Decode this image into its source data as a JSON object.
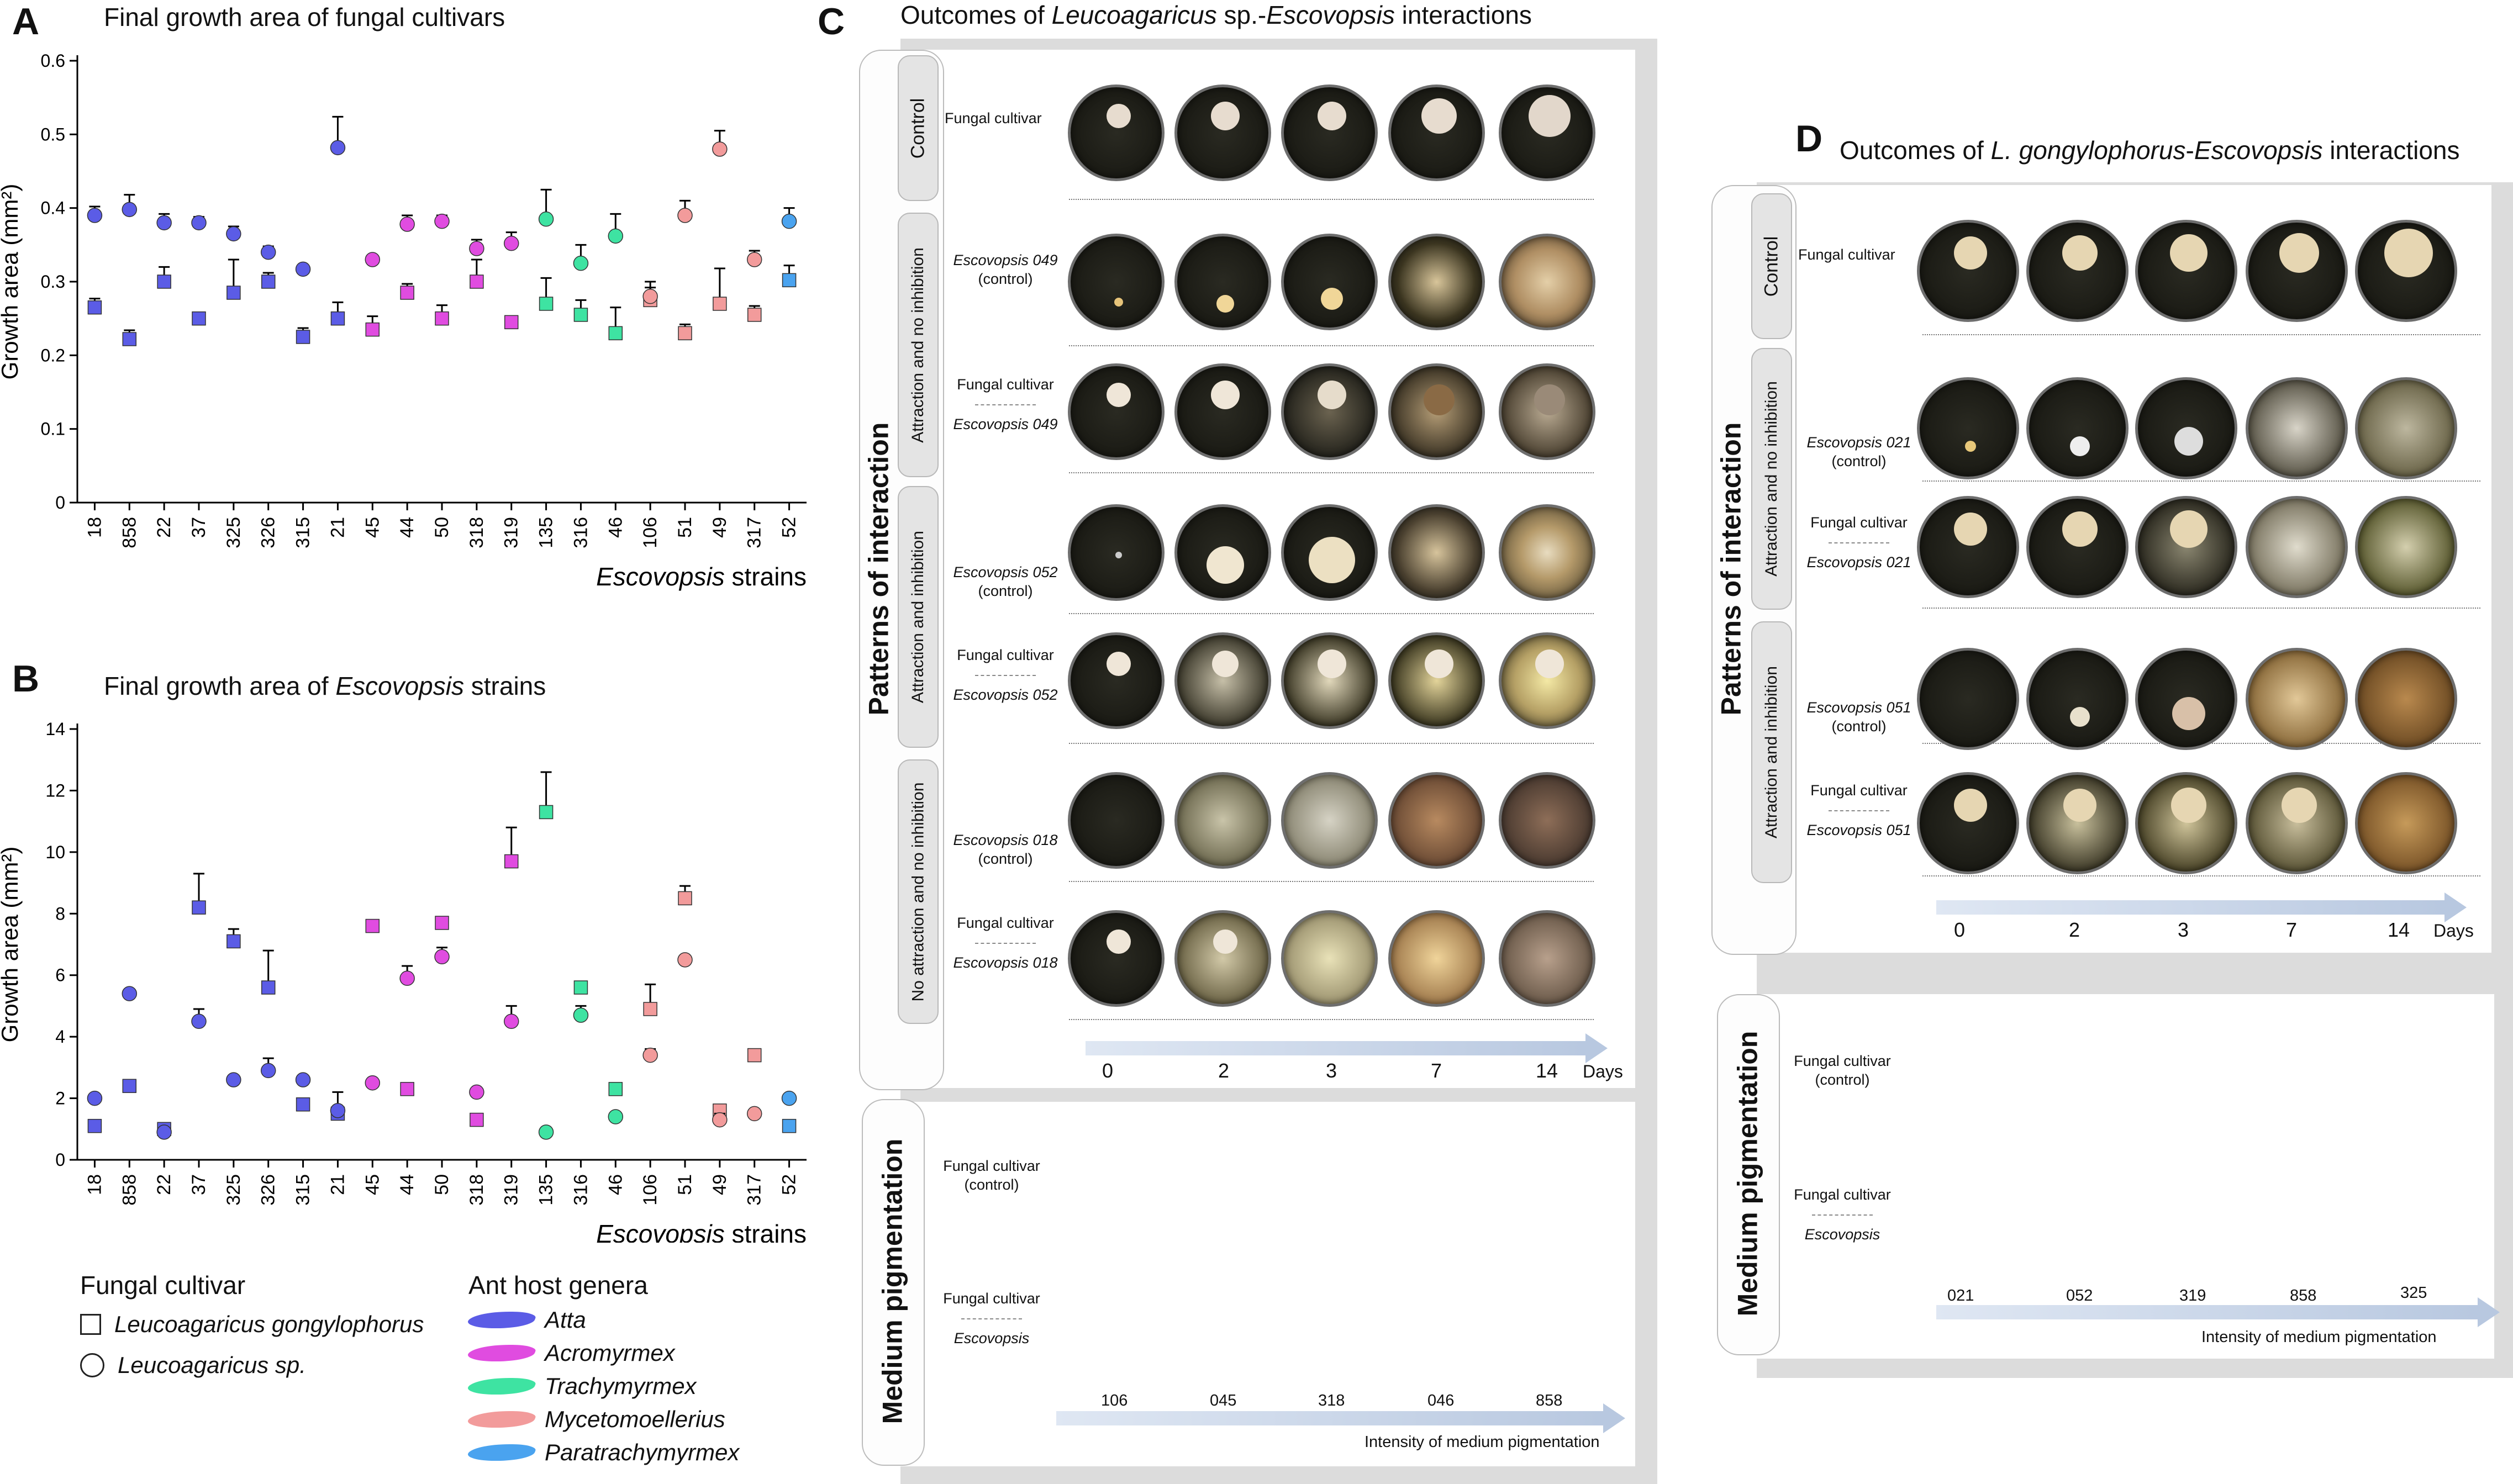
{
  "panelA": {
    "label": "A",
    "title": "Final growth area of fungal cultivars",
    "ylabel": "Growth area (mm²)",
    "xlabel_italic": "Escovopsis",
    "xlabel_rest": " strains"
  },
  "panelB": {
    "label": "B",
    "title_prefix": "Final growth area of ",
    "title_italic": "Escovopsis",
    "title_suffix": " strains",
    "ylabel": "Growth area (mm²)",
    "xlabel_italic": "Escovopsis",
    "xlabel_rest": " strains"
  },
  "legend": {
    "cultivar_title": "Fungal cultivar",
    "cultivars": [
      "Leucoagaricus gongylophorus",
      "Leucoagaricus sp."
    ],
    "ant_title": "Ant host genera",
    "genera": [
      {
        "name": "Atta",
        "color": "#5b5ce6"
      },
      {
        "name": "Acromyrmex",
        "color": "#e04ce0"
      },
      {
        "name": "Trachymyrmex",
        "color": "#3ee3a2"
      },
      {
        "name": "Mycetomoellerius",
        "color": "#f29b9b"
      },
      {
        "name": "Paratrachymyrmex",
        "color": "#4aa3ef"
      }
    ]
  },
  "chart_data": [
    {
      "type": "scatter",
      "id": "A",
      "title": "Final growth area of fungal cultivars",
      "ylabel": "Growth area (mm²)",
      "xlabel": "Escovopsis strains",
      "ylim": [
        0,
        0.6
      ],
      "yticks": [
        "0",
        "0.1",
        "0.2",
        "0.3",
        "0.4",
        "0.5",
        "0.6"
      ],
      "categories": [
        "18",
        "858",
        "22",
        "37",
        "325",
        "326",
        "315",
        "21",
        "45",
        "44",
        "50",
        "318",
        "319",
        "135",
        "316",
        "46",
        "106",
        "51",
        "49",
        "317",
        "52"
      ],
      "genus": [
        "Atta",
        "Atta",
        "Atta",
        "Atta",
        "Atta",
        "Atta",
        "Atta",
        "Atta",
        "Acromyrmex",
        "Acromyrmex",
        "Acromyrmex",
        "Acromyrmex",
        "Acromyrmex",
        "Trachymyrmex",
        "Trachymyrmex",
        "Trachymyrmex",
        "Mycetomoellerius",
        "Mycetomoellerius",
        "Mycetomoellerius",
        "Mycetomoellerius",
        "Paratrachymyrmex"
      ],
      "series": [
        {
          "name": "Leucoagaricus gongylophorus",
          "marker": "square",
          "values": [
            0.265,
            0.222,
            0.3,
            0.25,
            0.285,
            0.3,
            0.225,
            0.25,
            0.235,
            0.285,
            0.25,
            0.3,
            0.245,
            0.27,
            0.255,
            0.23,
            0.275,
            0.23,
            0.27,
            0.255,
            0.302
          ],
          "err": [
            0.012,
            0.012,
            0.02,
            0.008,
            0.045,
            0.012,
            0.012,
            0.022,
            0.018,
            0.012,
            0.018,
            0.03,
            0.008,
            0.035,
            0.02,
            0.035,
            0.025,
            0.012,
            0.048,
            0.012,
            0.02
          ]
        },
        {
          "name": "Leucoagaricus sp.",
          "marker": "circle",
          "values": [
            0.39,
            0.398,
            0.38,
            0.38,
            0.365,
            0.34,
            0.317,
            0.482,
            0.33,
            0.378,
            0.382,
            0.345,
            0.352,
            0.385,
            0.325,
            0.362,
            0.28,
            0.39,
            0.48,
            0.33,
            0.382
          ],
          "err": [
            0.012,
            0.02,
            0.012,
            0.008,
            0.01,
            0.008,
            0.005,
            0.042,
            0.005,
            0.012,
            0.008,
            0.012,
            0.015,
            0.04,
            0.025,
            0.03,
            0.012,
            0.02,
            0.025,
            0.012,
            0.018
          ]
        }
      ]
    },
    {
      "type": "scatter",
      "id": "B",
      "title": "Final growth area of Escovopsis strains",
      "ylabel": "Growth area (mm²)",
      "xlabel": "Escovopsis strains",
      "ylim": [
        0,
        14
      ],
      "yticks": [
        "0",
        "2",
        "4",
        "6",
        "8",
        "10",
        "12",
        "14"
      ],
      "categories": [
        "18",
        "858",
        "22",
        "37",
        "325",
        "326",
        "315",
        "21",
        "45",
        "44",
        "50",
        "318",
        "319",
        "135",
        "316",
        "46",
        "106",
        "51",
        "49",
        "317",
        "52"
      ],
      "genus": [
        "Atta",
        "Atta",
        "Atta",
        "Atta",
        "Atta",
        "Atta",
        "Atta",
        "Atta",
        "Acromyrmex",
        "Acromyrmex",
        "Acromyrmex",
        "Acromyrmex",
        "Acromyrmex",
        "Trachymyrmex",
        "Trachymyrmex",
        "Trachymyrmex",
        "Mycetomoellerius",
        "Mycetomoellerius",
        "Mycetomoellerius",
        "Mycetomoellerius",
        "Paratrachymyrmex"
      ],
      "series": [
        {
          "name": "Leucoagaricus gongylophorus",
          "marker": "square",
          "values": [
            1.1,
            2.4,
            1.0,
            8.2,
            7.1,
            5.6,
            1.8,
            1.5,
            7.6,
            2.3,
            7.7,
            1.3,
            9.7,
            11.3,
            5.6,
            2.3,
            4.9,
            8.5,
            1.6,
            3.4,
            1.1
          ],
          "err": [
            0,
            0,
            0,
            1.1,
            0.4,
            1.2,
            0,
            0.7,
            0,
            0,
            0,
            0,
            1.1,
            1.3,
            0,
            0,
            0.8,
            0.4,
            0,
            0,
            0
          ]
        },
        {
          "name": "Leucoagaricus sp.",
          "marker": "circle",
          "values": [
            2.0,
            5.4,
            0.9,
            4.5,
            2.6,
            2.9,
            2.6,
            1.6,
            2.5,
            5.9,
            6.6,
            2.2,
            4.5,
            0.9,
            4.7,
            1.4,
            3.4,
            6.5,
            1.3,
            1.5,
            2.0
          ],
          "err": [
            0,
            0,
            0,
            0.4,
            0,
            0.4,
            0,
            0,
            0,
            0.4,
            0.3,
            0,
            0.5,
            0,
            0.3,
            0,
            0.2,
            0,
            0.2,
            0,
            0
          ]
        }
      ]
    }
  ],
  "panelC": {
    "label": "C",
    "title_pre": "Outcomes of ",
    "title_italic1": "Leucoagaricus",
    "title_mid": " sp.-",
    "title_italic2": "Escovopsis",
    "title_post": " interactions",
    "patterns_label": "Patterns of interaction",
    "control_tab": "Control",
    "tab_attr_noinh": "Attraction and no inhibition",
    "tab_attr_inh": "Attraction and inhibition",
    "tab_noattr_noinh": "No attraction and no inhibition",
    "fungal_cultivar": "Fungal cultivar",
    "esc049": "Escovopsis 049",
    "esc052": "Escovopsis 052",
    "esc018": "Escovopsis 018",
    "control_paren": "(control)",
    "days": [
      "0",
      "2",
      "3",
      "7",
      "14"
    ],
    "days_label": "Days",
    "medium_label": "Medium pigmentation",
    "fc_control": "Fungal cultivar (control)",
    "escovopsis": "Escovopsis",
    "pig_strains": [
      "106",
      "045",
      "318",
      "046",
      "858"
    ],
    "pig_intensity": "Intensity of medium pigmentation"
  },
  "panelD": {
    "label": "D",
    "title_pre": "Outcomes of ",
    "title_italic1": "L. gongylophorus",
    "title_mid": "-",
    "title_italic2": "Escovopsis",
    "title_post": " interactions",
    "patterns_label": "Patterns of interaction",
    "control_tab": "Control",
    "tab_attr_noinh": "Attraction and no inhibition",
    "tab_attr_inh": "Attraction and inhibition",
    "fungal_cultivar": "Fungal cultivar",
    "esc021": "Escovopsis 021",
    "esc051": "Escovopsis 051",
    "control_paren": "(control)",
    "days": [
      "0",
      "2",
      "3",
      "7",
      "14"
    ],
    "days_label": "Days",
    "medium_label": "Medium pigmentation",
    "fc_control": "Fungal cultivar (control)",
    "escovopsis": "Escovopsis",
    "pig_strains": [
      "021",
      "052",
      "319",
      "858",
      "325"
    ],
    "pig_intensity": "Intensity of medium pigmentation"
  }
}
